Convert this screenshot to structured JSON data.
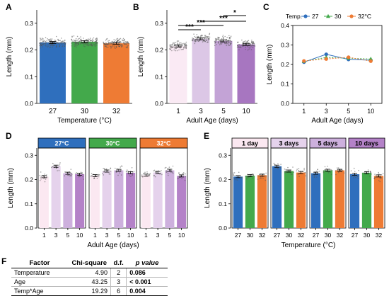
{
  "colors": {
    "temp": [
      "#2f6fbd",
      "#43a94b",
      "#ee7b34"
    ],
    "age": [
      "#faeaf4",
      "#dcc7e6",
      "#c3a3d6",
      "#a776c0"
    ],
    "facet_age": [
      "#fbe8f1",
      "#e5d2ec",
      "#cdb0dd",
      "#b482c8"
    ],
    "facet_temp": [
      "#2f6fbd",
      "#43a94b",
      "#ee7b34"
    ]
  },
  "chart_data": [
    {
      "panel": "A",
      "type": "bar",
      "xlabel": "Temperature (°C)",
      "ylabel": "Length (mm)",
      "categories": [
        "27",
        "30",
        "32"
      ],
      "values": [
        0.228,
        0.231,
        0.225
      ],
      "ylim": [
        0,
        0.35
      ],
      "yticks": [
        "0.0",
        "0.1",
        "0.2",
        "0.3"
      ],
      "grid": false
    },
    {
      "panel": "B",
      "type": "bar",
      "xlabel": "Adult Age (days)",
      "ylabel": "Length (mm)",
      "categories": [
        "1",
        "3",
        "5",
        "10"
      ],
      "values": [
        0.215,
        0.242,
        0.234,
        0.221
      ],
      "ylim": [
        0,
        0.35
      ],
      "yticks": [
        "0.0",
        "0.1",
        "0.2",
        "0.3"
      ],
      "significance": [
        {
          "from": "1",
          "to": "3",
          "label": "***"
        },
        {
          "from": "1",
          "to": "5",
          "label": "***"
        },
        {
          "from": "3",
          "to": "10",
          "label": "***"
        },
        {
          "from": "5",
          "to": "10",
          "label": "*"
        }
      ]
    },
    {
      "panel": "C",
      "type": "line",
      "xlabel": "Adult Age (days)",
      "ylabel": "Length (mm)",
      "legend_title": "Temp.",
      "legend_position": "top",
      "x": [
        "1",
        "3",
        "5",
        "10"
      ],
      "ylim": [
        0,
        0.4
      ],
      "yticks": [
        "0.0",
        "0.1",
        "0.2",
        "0.3",
        "0.4"
      ],
      "series": [
        {
          "name": "27",
          "values": [
            0.212,
            0.252,
            0.226,
            0.222
          ]
        },
        {
          "name": "30",
          "values": [
            0.216,
            0.236,
            0.232,
            0.228
          ]
        },
        {
          "name": "32°C",
          "values": [
            0.218,
            0.228,
            0.237,
            0.217
          ]
        }
      ]
    },
    {
      "panel": "D",
      "type": "bar",
      "xlabel": "Adult Age (days)",
      "ylabel": "Length (mm)",
      "ylim": [
        0,
        0.33
      ],
      "yticks": [
        "0.0",
        "0.1",
        "0.2",
        "0.3"
      ],
      "facets": [
        {
          "label": "27°C",
          "categories": [
            "1",
            "3",
            "5",
            "10"
          ],
          "values": [
            0.212,
            0.255,
            0.226,
            0.222
          ]
        },
        {
          "label": "30°C",
          "categories": [
            "1",
            "3",
            "5",
            "10"
          ],
          "values": [
            0.216,
            0.235,
            0.238,
            0.228
          ]
        },
        {
          "label": "32°C",
          "categories": [
            "1",
            "3",
            "5",
            "10"
          ],
          "values": [
            0.218,
            0.229,
            0.238,
            0.215
          ]
        }
      ]
    },
    {
      "panel": "E",
      "type": "bar",
      "xlabel": "Temperature (°C)",
      "ylabel": "Length (mm)",
      "ylim": [
        0,
        0.33
      ],
      "yticks": [
        "0.0",
        "0.1",
        "0.2",
        "0.3"
      ],
      "facets": [
        {
          "label": "1 day",
          "categories": [
            "27",
            "30",
            "32"
          ],
          "values": [
            0.212,
            0.216,
            0.218
          ]
        },
        {
          "label": "3 days",
          "categories": [
            "27",
            "30",
            "32"
          ],
          "values": [
            0.255,
            0.235,
            0.229
          ]
        },
        {
          "label": "5 days",
          "categories": [
            "27",
            "30",
            "32"
          ],
          "values": [
            0.226,
            0.238,
            0.238
          ]
        },
        {
          "label": "10 days",
          "categories": [
            "27",
            "30",
            "32"
          ],
          "values": [
            0.222,
            0.228,
            0.215
          ]
        }
      ]
    },
    {
      "panel": "F",
      "type": "table",
      "columns": [
        "Factor",
        "Chi-square",
        "d.f.",
        "p value"
      ],
      "rows": [
        {
          "factor": "Temperature",
          "chi": "4.90",
          "df": "2",
          "p": "0.086"
        },
        {
          "factor": "Age",
          "chi": "43.25",
          "df": "3",
          "p": "< 0.001"
        },
        {
          "factor": "Temp*Age",
          "chi": "19.29",
          "df": "6",
          "p": "0.004"
        }
      ]
    }
  ]
}
